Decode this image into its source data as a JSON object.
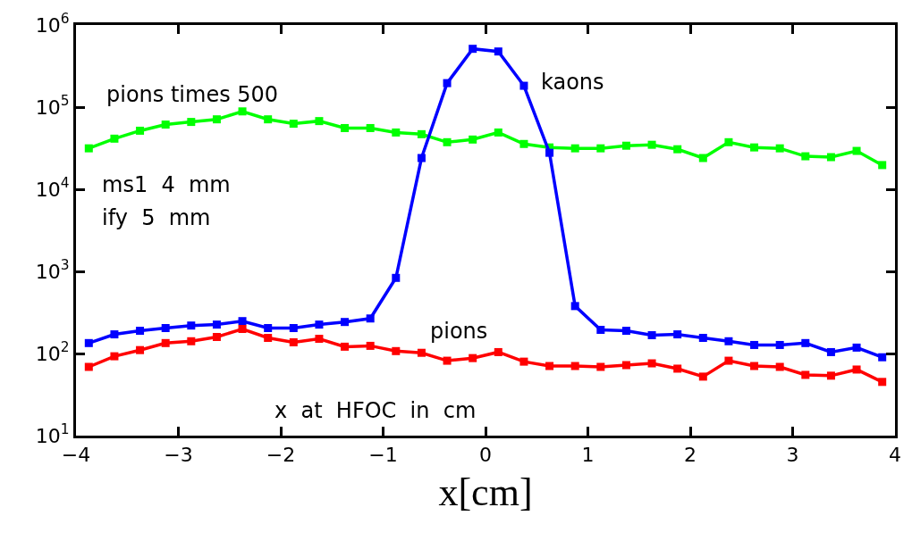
{
  "chart_data": {
    "type": "line",
    "xlabel": "x[cm]",
    "x": [
      -3.875,
      -3.625,
      -3.375,
      -3.125,
      -2.875,
      -2.625,
      -2.375,
      -2.125,
      -1.875,
      -1.625,
      -1.375,
      -1.125,
      -0.875,
      -0.625,
      -0.375,
      -0.125,
      0.125,
      0.375,
      0.625,
      0.875,
      1.125,
      1.375,
      1.625,
      1.875,
      2.125,
      2.375,
      2.625,
      2.875,
      3.125,
      3.375,
      3.625,
      3.875
    ],
    "series": [
      {
        "name": "pions times 500",
        "color": "#00ff00",
        "values": [
          31500,
          41300,
          51600,
          61300,
          66000,
          71000,
          88700,
          71000,
          62800,
          67600,
          55600,
          55600,
          49100,
          46800,
          37400,
          40300,
          49100,
          35600,
          32300,
          31500,
          31500,
          33900,
          34800,
          30700,
          24000,
          37400,
          32300,
          31500,
          25200,
          24600,
          29300,
          19700
        ]
      },
      {
        "name": "kaons",
        "color": "#0000ff",
        "values": [
          134,
          171,
          189,
          204,
          219,
          225,
          248,
          204,
          204,
          225,
          242,
          267,
          833,
          24000,
          196000,
          513000,
          476000,
          182000,
          27800,
          378,
          194,
          189,
          167,
          171,
          155,
          141,
          127,
          127,
          134,
          104,
          118,
          90
        ]
      },
      {
        "name": "pions",
        "color": "#ff0000",
        "values": [
          68.7,
          92.5,
          110,
          134,
          141,
          159,
          199,
          155,
          137,
          151,
          121,
          124,
          107,
          102,
          81.7,
          87.9,
          104,
          79.6,
          70.4,
          70.4,
          68.7,
          72.2,
          75.9,
          65.4,
          52.3,
          81.7,
          70.4,
          68.7,
          54.9,
          53.7,
          63.8,
          45.1
        ]
      }
    ],
    "log": "y",
    "xlim": [
      -4,
      4
    ],
    "xticks": [
      {
        "value": -4,
        "label": "−4"
      },
      {
        "value": -3,
        "label": "−3"
      },
      {
        "value": -2,
        "label": "−2"
      },
      {
        "value": -1,
        "label": "−1"
      },
      0,
      1,
      2,
      3,
      4
    ],
    "ylim": [
      10,
      1000000
    ],
    "yticks": [
      {
        "value": 10,
        "label": "10$^{1}$"
      },
      {
        "value": 100,
        "label": "10$^{2}$"
      },
      {
        "value": 1000,
        "label": "10$^{3}$"
      },
      {
        "value": 10000,
        "label": "10$^{4}$"
      },
      {
        "value": 100000,
        "label": "10$^{5}$"
      },
      {
        "value": 1000000,
        "label": "10$^{6}$"
      }
    ],
    "annotations": [
      "ms1  4  mm",
      "ify  5  mm",
      "x  at  HFOC  in  cm"
    ],
    "legend": false,
    "marker": "square",
    "line_style": "solid"
  }
}
